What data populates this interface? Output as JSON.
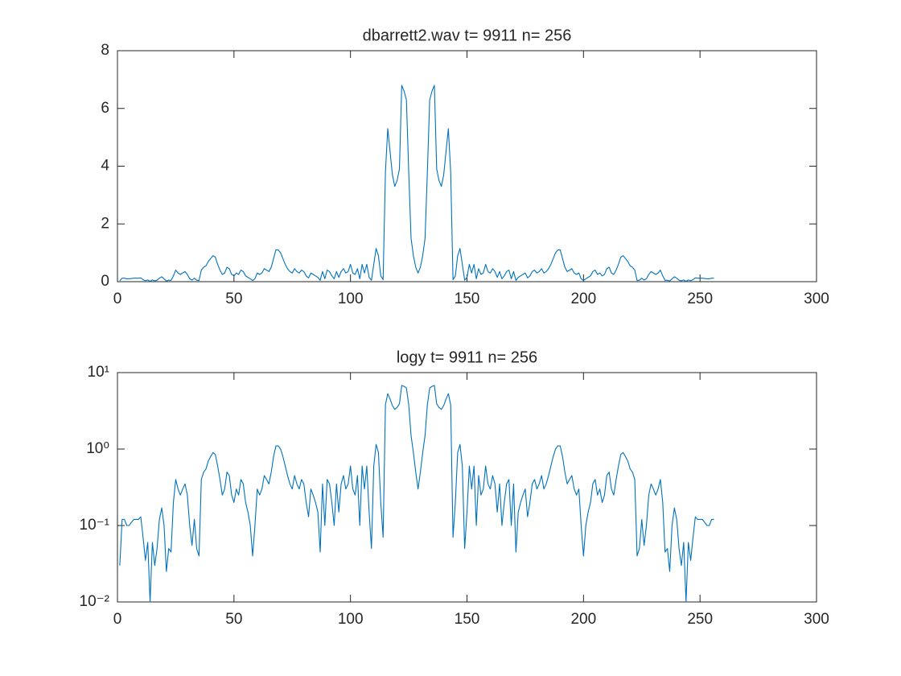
{
  "chart_data": [
    {
      "type": "line",
      "title": "dbarrett2.wav  t= 9911 n= 256",
      "color": "#0072bd",
      "yscale": "linear",
      "xlim": [
        0,
        300
      ],
      "xticks": [
        0,
        50,
        100,
        150,
        200,
        250,
        300
      ],
      "ylim": [
        0,
        8
      ],
      "yticks": [
        0,
        2,
        4,
        6,
        8
      ],
      "x": [
        1,
        2,
        3,
        4,
        5,
        6,
        7,
        8,
        9,
        10,
        11,
        12,
        13,
        14,
        15,
        16,
        17,
        18,
        19,
        20,
        21,
        22,
        23,
        24,
        25,
        26,
        27,
        28,
        29,
        30,
        31,
        32,
        33,
        34,
        35,
        36,
        37,
        38,
        39,
        40,
        41,
        42,
        43,
        44,
        45,
        46,
        47,
        48,
        49,
        50,
        51,
        52,
        53,
        54,
        55,
        56,
        57,
        58,
        59,
        60,
        61,
        62,
        63,
        64,
        65,
        66,
        67,
        68,
        69,
        70,
        71,
        72,
        73,
        74,
        75,
        76,
        77,
        78,
        79,
        80,
        81,
        82,
        83,
        84,
        85,
        86,
        87,
        88,
        89,
        90,
        91,
        92,
        93,
        94,
        95,
        96,
        97,
        98,
        99,
        100,
        101,
        102,
        103,
        104,
        105,
        106,
        107,
        108,
        109,
        110,
        111,
        112,
        113,
        114,
        115,
        116,
        117,
        118,
        119,
        120,
        121,
        122,
        123,
        124,
        125,
        126,
        127,
        128,
        129,
        130,
        131,
        132,
        133,
        134,
        135,
        136,
        137,
        138,
        139,
        140,
        141,
        142,
        143,
        144,
        145,
        146,
        147,
        148,
        149,
        150,
        151,
        152,
        153,
        154,
        155,
        156,
        157,
        158,
        159,
        160,
        161,
        162,
        163,
        164,
        165,
        166,
        167,
        168,
        169,
        170,
        171,
        172,
        173,
        174,
        175,
        176,
        177,
        178,
        179,
        180,
        181,
        182,
        183,
        184,
        185,
        186,
        187,
        188,
        189,
        190,
        191,
        192,
        193,
        194,
        195,
        196,
        197,
        198,
        199,
        200,
        201,
        202,
        203,
        204,
        205,
        206,
        207,
        208,
        209,
        210,
        211,
        212,
        213,
        214,
        215,
        216,
        217,
        218,
        219,
        220,
        221,
        222,
        223,
        224,
        225,
        226,
        227,
        228,
        229,
        230,
        231,
        232,
        233,
        234,
        235,
        236,
        237,
        238,
        239,
        240,
        241,
        242,
        243,
        244,
        245,
        246,
        247,
        248,
        249,
        250,
        251,
        252,
        253,
        254,
        255,
        256
      ],
      "values": [
        0.03,
        0.12,
        0.12,
        0.1,
        0.1,
        0.11,
        0.12,
        0.12,
        0.12,
        0.13,
        0.07,
        0.035,
        0.06,
        0.01,
        0.06,
        0.03,
        0.05,
        0.12,
        0.17,
        0.1,
        0.025,
        0.05,
        0.045,
        0.2,
        0.4,
        0.3,
        0.25,
        0.3,
        0.35,
        0.25,
        0.1,
        0.055,
        0.12,
        0.05,
        0.04,
        0.4,
        0.5,
        0.55,
        0.7,
        0.8,
        0.9,
        0.85,
        0.6,
        0.4,
        0.25,
        0.3,
        0.5,
        0.45,
        0.25,
        0.2,
        0.3,
        0.25,
        0.4,
        0.35,
        0.2,
        0.15,
        0.1,
        0.04,
        0.1,
        0.3,
        0.25,
        0.3,
        0.45,
        0.4,
        0.35,
        0.5,
        0.8,
        1.1,
        1.1,
        1.0,
        0.8,
        0.6,
        0.45,
        0.35,
        0.3,
        0.45,
        0.35,
        0.3,
        0.4,
        0.35,
        0.2,
        0.13,
        0.3,
        0.25,
        0.2,
        0.15,
        0.045,
        0.35,
        0.1,
        0.4,
        0.35,
        0.2,
        0.1,
        0.35,
        0.15,
        0.35,
        0.45,
        0.3,
        0.35,
        0.6,
        0.3,
        0.25,
        0.45,
        0.1,
        0.6,
        0.3,
        0.6,
        0.15,
        0.05,
        0.6,
        1.15,
        0.9,
        0.2,
        0.07,
        3.8,
        5.3,
        4.5,
        3.7,
        3.3,
        3.5,
        3.9,
        6.8,
        6.6,
        6.3,
        3.8,
        1.5,
        0.9,
        0.5,
        0.3,
        0.5,
        0.9,
        1.5,
        3.8,
        6.3,
        6.6,
        6.8,
        3.9,
        3.5,
        3.3,
        3.7,
        4.5,
        5.3,
        3.8,
        0.07,
        0.2,
        0.9,
        1.15,
        0.6,
        0.05,
        0.15,
        0.6,
        0.3,
        0.6,
        0.1,
        0.45,
        0.25,
        0.3,
        0.6,
        0.35,
        0.3,
        0.45,
        0.35,
        0.15,
        0.35,
        0.1,
        0.2,
        0.35,
        0.4,
        0.1,
        0.35,
        0.045,
        0.15,
        0.2,
        0.25,
        0.3,
        0.13,
        0.2,
        0.35,
        0.4,
        0.3,
        0.35,
        0.45,
        0.3,
        0.35,
        0.45,
        0.6,
        0.8,
        1.0,
        1.1,
        1.1,
        0.8,
        0.5,
        0.35,
        0.4,
        0.45,
        0.3,
        0.25,
        0.3,
        0.1,
        0.04,
        0.1,
        0.15,
        0.2,
        0.35,
        0.4,
        0.25,
        0.3,
        0.2,
        0.25,
        0.45,
        0.5,
        0.3,
        0.25,
        0.4,
        0.6,
        0.85,
        0.9,
        0.8,
        0.7,
        0.55,
        0.5,
        0.4,
        0.04,
        0.05,
        0.12,
        0.055,
        0.1,
        0.25,
        0.35,
        0.3,
        0.25,
        0.3,
        0.4,
        0.2,
        0.045,
        0.05,
        0.025,
        0.1,
        0.17,
        0.12,
        0.05,
        0.03,
        0.06,
        0.01,
        0.06,
        0.035,
        0.07,
        0.13,
        0.12,
        0.12,
        0.12,
        0.11,
        0.1,
        0.1,
        0.12,
        0.12
      ]
    },
    {
      "type": "line",
      "title": "logy t= 9911 n= 256",
      "color": "#0072bd",
      "yscale": "log",
      "xlim": [
        0,
        300
      ],
      "xticks": [
        0,
        50,
        100,
        150,
        200,
        250,
        300
      ],
      "ylim": [
        0.01,
        10
      ],
      "yticks": [
        {
          "value": 0.01,
          "label": "10⁻²"
        },
        {
          "value": 0.1,
          "label": "10⁻¹"
        },
        {
          "value": 1,
          "label": "10⁰"
        },
        {
          "value": 10,
          "label": "10¹"
        }
      ],
      "x": [
        1,
        2,
        3,
        4,
        5,
        6,
        7,
        8,
        9,
        10,
        11,
        12,
        13,
        14,
        15,
        16,
        17,
        18,
        19,
        20,
        21,
        22,
        23,
        24,
        25,
        26,
        27,
        28,
        29,
        30,
        31,
        32,
        33,
        34,
        35,
        36,
        37,
        38,
        39,
        40,
        41,
        42,
        43,
        44,
        45,
        46,
        47,
        48,
        49,
        50,
        51,
        52,
        53,
        54,
        55,
        56,
        57,
        58,
        59,
        60,
        61,
        62,
        63,
        64,
        65,
        66,
        67,
        68,
        69,
        70,
        71,
        72,
        73,
        74,
        75,
        76,
        77,
        78,
        79,
        80,
        81,
        82,
        83,
        84,
        85,
        86,
        87,
        88,
        89,
        90,
        91,
        92,
        93,
        94,
        95,
        96,
        97,
        98,
        99,
        100,
        101,
        102,
        103,
        104,
        105,
        106,
        107,
        108,
        109,
        110,
        111,
        112,
        113,
        114,
        115,
        116,
        117,
        118,
        119,
        120,
        121,
        122,
        123,
        124,
        125,
        126,
        127,
        128,
        129,
        130,
        131,
        132,
        133,
        134,
        135,
        136,
        137,
        138,
        139,
        140,
        141,
        142,
        143,
        144,
        145,
        146,
        147,
        148,
        149,
        150,
        151,
        152,
        153,
        154,
        155,
        156,
        157,
        158,
        159,
        160,
        161,
        162,
        163,
        164,
        165,
        166,
        167,
        168,
        169,
        170,
        171,
        172,
        173,
        174,
        175,
        176,
        177,
        178,
        179,
        180,
        181,
        182,
        183,
        184,
        185,
        186,
        187,
        188,
        189,
        190,
        191,
        192,
        193,
        194,
        195,
        196,
        197,
        198,
        199,
        200,
        201,
        202,
        203,
        204,
        205,
        206,
        207,
        208,
        209,
        210,
        211,
        212,
        213,
        214,
        215,
        216,
        217,
        218,
        219,
        220,
        221,
        222,
        223,
        224,
        225,
        226,
        227,
        228,
        229,
        230,
        231,
        232,
        233,
        234,
        235,
        236,
        237,
        238,
        239,
        240,
        241,
        242,
        243,
        244,
        245,
        246,
        247,
        248,
        249,
        250,
        251,
        252,
        253,
        254,
        255,
        256
      ],
      "values": [
        0.03,
        0.12,
        0.12,
        0.1,
        0.1,
        0.11,
        0.12,
        0.12,
        0.12,
        0.13,
        0.07,
        0.035,
        0.06,
        0.01,
        0.06,
        0.03,
        0.05,
        0.12,
        0.17,
        0.1,
        0.025,
        0.05,
        0.045,
        0.2,
        0.4,
        0.3,
        0.25,
        0.3,
        0.35,
        0.25,
        0.1,
        0.055,
        0.12,
        0.05,
        0.04,
        0.4,
        0.5,
        0.55,
        0.7,
        0.8,
        0.9,
        0.85,
        0.6,
        0.4,
        0.25,
        0.3,
        0.5,
        0.45,
        0.25,
        0.2,
        0.3,
        0.25,
        0.4,
        0.35,
        0.2,
        0.15,
        0.1,
        0.04,
        0.1,
        0.3,
        0.25,
        0.3,
        0.45,
        0.4,
        0.35,
        0.5,
        0.8,
        1.1,
        1.1,
        1.0,
        0.8,
        0.6,
        0.45,
        0.35,
        0.3,
        0.45,
        0.35,
        0.3,
        0.4,
        0.35,
        0.2,
        0.13,
        0.3,
        0.25,
        0.2,
        0.15,
        0.045,
        0.35,
        0.1,
        0.4,
        0.35,
        0.2,
        0.1,
        0.35,
        0.15,
        0.35,
        0.45,
        0.3,
        0.35,
        0.6,
        0.3,
        0.25,
        0.45,
        0.1,
        0.6,
        0.3,
        0.6,
        0.15,
        0.05,
        0.6,
        1.15,
        0.9,
        0.2,
        0.07,
        3.8,
        5.3,
        4.5,
        3.7,
        3.3,
        3.5,
        3.9,
        6.8,
        6.6,
        6.3,
        3.8,
        1.5,
        0.9,
        0.5,
        0.3,
        0.5,
        0.9,
        1.5,
        3.8,
        6.3,
        6.6,
        6.8,
        3.9,
        3.5,
        3.3,
        3.7,
        4.5,
        5.3,
        3.8,
        0.07,
        0.2,
        0.9,
        1.15,
        0.6,
        0.05,
        0.15,
        0.6,
        0.3,
        0.6,
        0.1,
        0.45,
        0.25,
        0.3,
        0.6,
        0.35,
        0.3,
        0.45,
        0.35,
        0.15,
        0.35,
        0.1,
        0.2,
        0.35,
        0.4,
        0.1,
        0.35,
        0.045,
        0.15,
        0.2,
        0.25,
        0.3,
        0.13,
        0.2,
        0.35,
        0.4,
        0.3,
        0.35,
        0.45,
        0.3,
        0.35,
        0.45,
        0.6,
        0.8,
        1.0,
        1.1,
        1.1,
        0.8,
        0.5,
        0.35,
        0.4,
        0.45,
        0.3,
        0.25,
        0.3,
        0.1,
        0.04,
        0.1,
        0.15,
        0.2,
        0.35,
        0.4,
        0.25,
        0.3,
        0.2,
        0.25,
        0.45,
        0.5,
        0.3,
        0.25,
        0.4,
        0.6,
        0.85,
        0.9,
        0.8,
        0.7,
        0.55,
        0.5,
        0.4,
        0.04,
        0.05,
        0.12,
        0.055,
        0.1,
        0.25,
        0.35,
        0.3,
        0.25,
        0.3,
        0.4,
        0.2,
        0.045,
        0.05,
        0.025,
        0.1,
        0.17,
        0.12,
        0.05,
        0.03,
        0.06,
        0.01,
        0.06,
        0.035,
        0.07,
        0.13,
        0.12,
        0.12,
        0.12,
        0.11,
        0.1,
        0.1,
        0.12,
        0.12
      ]
    }
  ]
}
